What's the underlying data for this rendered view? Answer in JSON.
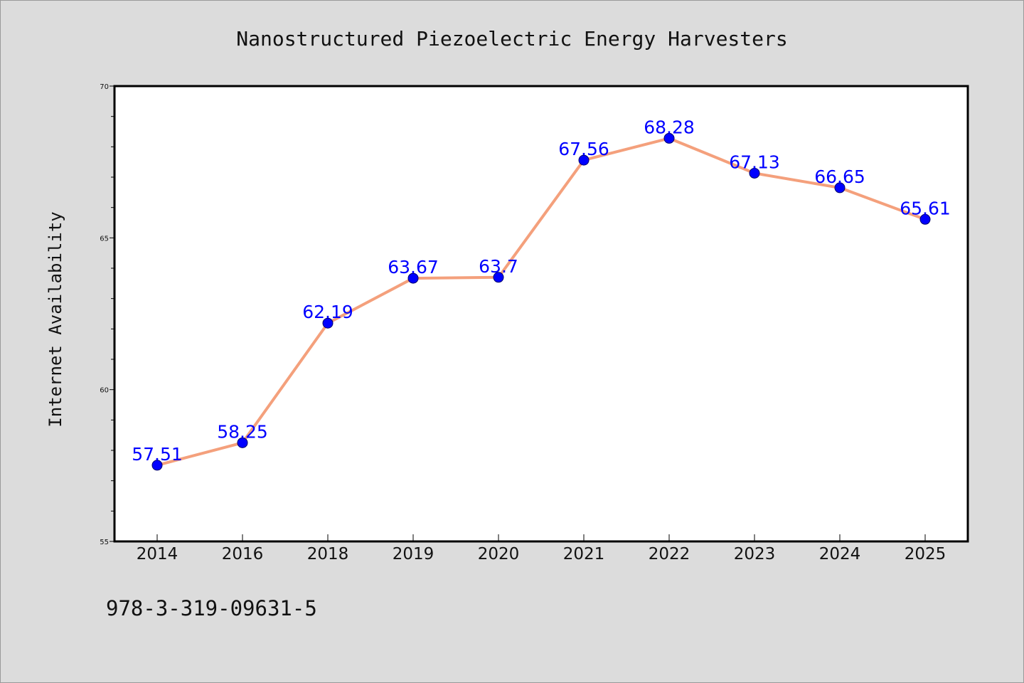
{
  "chart_data": {
    "type": "line",
    "title": "Nanostructured Piezoelectric Energy Harvesters",
    "xlabel": "",
    "ylabel": "Internet Availability",
    "categories": [
      "2014",
      "2016",
      "2018",
      "2019",
      "2020",
      "2021",
      "2022",
      "2023",
      "2024",
      "2025"
    ],
    "series": [
      {
        "values": [
          57.51,
          58.25,
          62.19,
          63.67,
          63.7,
          67.56,
          68.28,
          67.13,
          66.65,
          65.61
        ],
        "data_labels": [
          "57.51",
          "58.25",
          "62.19",
          "63.67",
          "63.7",
          "67.56",
          "68.28",
          "67.13",
          "66.65",
          "65.61"
        ]
      }
    ],
    "ylim": [
      55,
      70
    ],
    "yticks": [
      55,
      60,
      65,
      70
    ],
    "ytick_labels": [
      "55",
      "60",
      "65",
      "70"
    ],
    "grid": false,
    "legend": "none",
    "colors": {
      "line": "#f4a07c",
      "marker": "#0000ff",
      "data_label": "#0000ff",
      "plot_background": "#ffffff",
      "figure_background": "#dcdcdc"
    }
  },
  "footer": {
    "text": "978-3-319-09631-5"
  }
}
